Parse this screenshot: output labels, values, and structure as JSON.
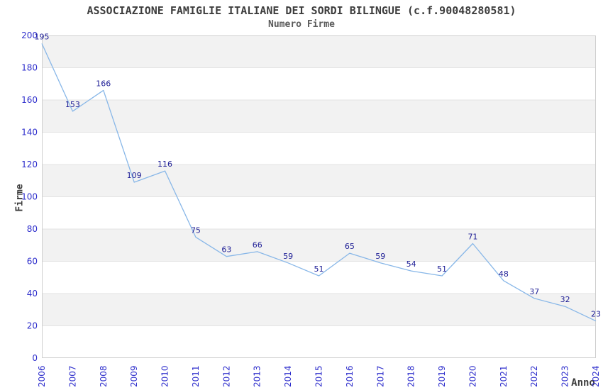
{
  "title": "ASSOCIAZIONE FAMIGLIE ITALIANE DEI SORDI BILINGUE (c.f.90048280581)",
  "subtitle": "Numero Firme",
  "y_axis_title": "Firme",
  "x_axis_title": "Anno",
  "colors": {
    "line": "#88b7e8",
    "data_label": "#1e1e96",
    "tick_label": "#2e2ecc",
    "band": "#f2f2f2",
    "gridline": "#e3e3e3",
    "plot_border": "#cfcfcf",
    "background": "#ffffff"
  },
  "chart_data": {
    "type": "line",
    "title": "ASSOCIAZIONE FAMIGLIE ITALIANE DEI SORDI BILINGUE (c.f.90048280581)",
    "subtitle": "Numero Firme",
    "xlabel": "Anno",
    "ylabel": "Firme",
    "x": [
      2006,
      2007,
      2008,
      2009,
      2010,
      2011,
      2012,
      2013,
      2014,
      2015,
      2016,
      2017,
      2018,
      2019,
      2020,
      2021,
      2022,
      2023,
      2024
    ],
    "values": [
      195,
      153,
      166,
      109,
      116,
      75,
      63,
      66,
      59,
      51,
      65,
      59,
      54,
      51,
      71,
      48,
      37,
      32,
      23
    ],
    "ylim": [
      0,
      200
    ],
    "ytick_step": 20,
    "grid": true,
    "alternating_bands": true,
    "data_labels": true,
    "legend": "none"
  }
}
